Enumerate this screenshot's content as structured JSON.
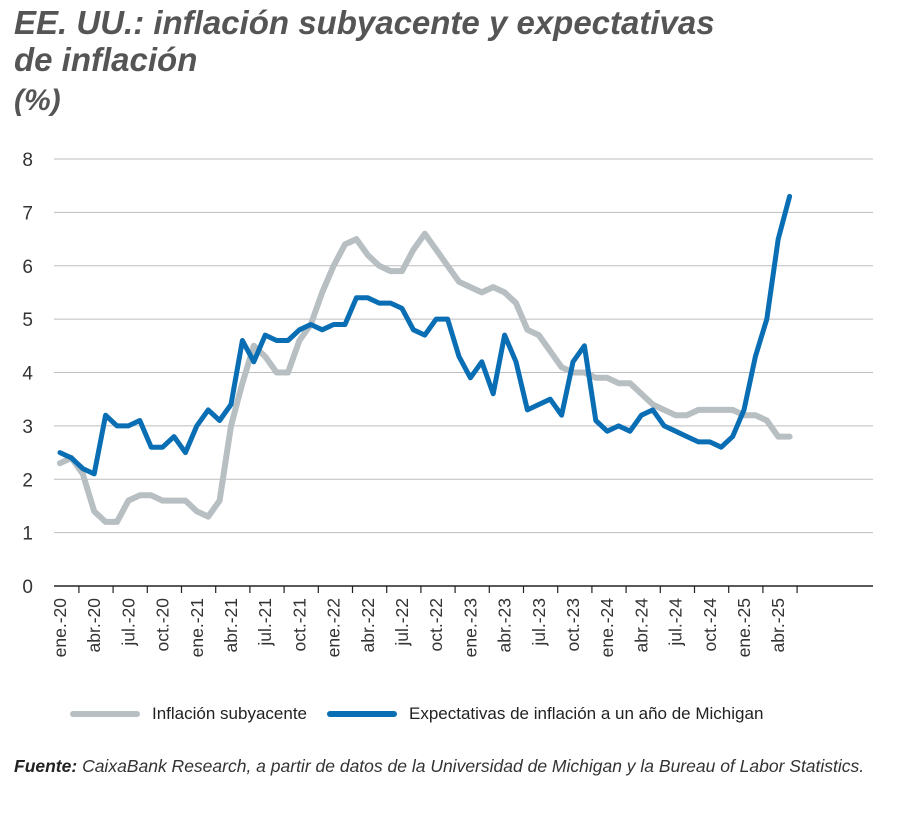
{
  "title": {
    "line1": "EE. UU.: inflación subyacente y expectativas",
    "line2": "de inflación",
    "unit": "(%)"
  },
  "legend": {
    "core": "Inflación subyacente",
    "michigan": "Expectativas de inflación a un año de Michigan"
  },
  "source": {
    "label": "Fuente:",
    "text": " CaixaBank Research, a partir de datos de la Universidad de Michigan y la Bureau of Labor Statistics."
  },
  "colors": {
    "core": "#b7bfc2",
    "michigan": "#0a6eb4",
    "grid": "#bdbdbd",
    "axis": "#222222"
  },
  "chart_data": {
    "type": "line",
    "ylim": [
      0,
      8
    ],
    "yticks": [
      0,
      1,
      2,
      3,
      4,
      5,
      6,
      7,
      8
    ],
    "grid": true,
    "legend_position": "bottom",
    "x_tick_labels": [
      "ene.-20",
      "abr.-20",
      "jul.-20",
      "oct.-20",
      "ene.-21",
      "abr.-21",
      "jul.-21",
      "oct.-21",
      "ene.-22",
      "abr.-22",
      "jul.-22",
      "oct.-22",
      "ene.-23",
      "abr.-23",
      "jul.-23",
      "oct.-23",
      "ene.-24",
      "abr.-24",
      "jul.-24",
      "oct.-24",
      "ene.-25",
      "abr.-25"
    ],
    "x_start": "2020-01",
    "series": [
      {
        "name": "Inflación subyacente",
        "values": [
          2.3,
          2.4,
          2.1,
          1.4,
          1.2,
          1.2,
          1.6,
          1.7,
          1.7,
          1.6,
          1.6,
          1.6,
          1.4,
          1.3,
          1.6,
          3.0,
          3.8,
          4.5,
          4.3,
          4.0,
          4.0,
          4.6,
          4.9,
          5.5,
          6.0,
          6.4,
          6.5,
          6.2,
          6.0,
          5.9,
          5.9,
          6.3,
          6.6,
          6.3,
          6.0,
          5.7,
          5.6,
          5.5,
          5.6,
          5.5,
          5.3,
          4.8,
          4.7,
          4.4,
          4.1,
          4.0,
          4.0,
          3.9,
          3.9,
          3.8,
          3.8,
          3.6,
          3.4,
          3.3,
          3.2,
          3.2,
          3.3,
          3.3,
          3.3,
          3.3,
          3.2,
          3.2,
          3.1,
          2.8,
          2.8
        ]
      },
      {
        "name": "Expectativas de inflación a un año de Michigan",
        "values": [
          2.5,
          2.4,
          2.2,
          2.1,
          3.2,
          3.0,
          3.0,
          3.1,
          2.6,
          2.6,
          2.8,
          2.5,
          3.0,
          3.3,
          3.1,
          3.4,
          4.6,
          4.2,
          4.7,
          4.6,
          4.6,
          4.8,
          4.9,
          4.8,
          4.9,
          4.9,
          5.4,
          5.4,
          5.3,
          5.3,
          5.2,
          4.8,
          4.7,
          5.0,
          5.0,
          4.3,
          3.9,
          4.2,
          3.6,
          4.7,
          4.2,
          3.3,
          3.4,
          3.5,
          3.2,
          4.2,
          4.5,
          3.1,
          2.9,
          3.0,
          2.9,
          3.2,
          3.3,
          3.0,
          2.9,
          2.8,
          2.7,
          2.7,
          2.6,
          2.8,
          3.3,
          4.3,
          5.0,
          6.5,
          7.3
        ]
      }
    ]
  }
}
